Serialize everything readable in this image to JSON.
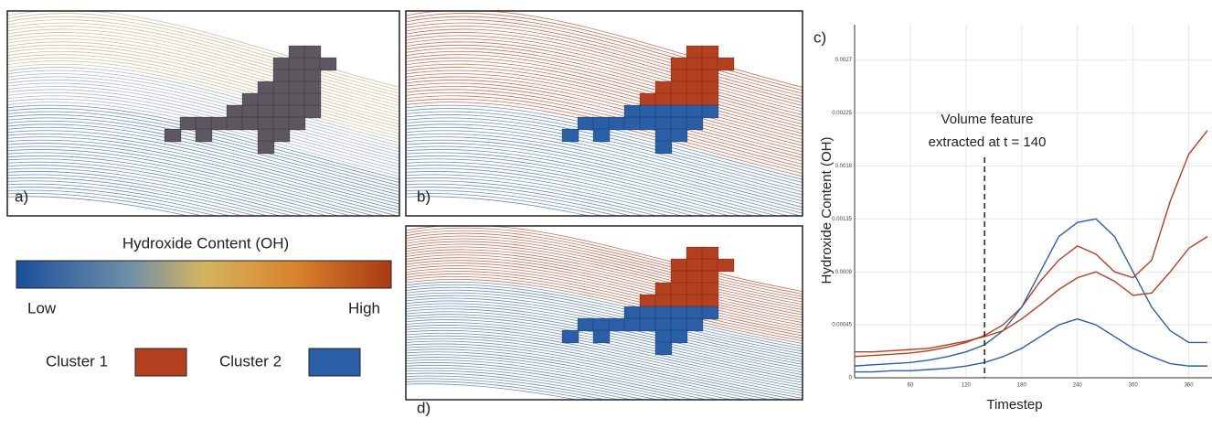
{
  "panels": {
    "a": "a)",
    "b": "b)",
    "d": "d)"
  },
  "colorbar": {
    "title": "Hydroxide Content (OH)",
    "low": "Low",
    "high": "High"
  },
  "chart_data": {
    "type": "line",
    "panel_label": "c)",
    "x_label": "Timestep",
    "y_label": "Hydroxide Content (OH)",
    "x": [
      0,
      20,
      40,
      60,
      80,
      100,
      120,
      140,
      160,
      180,
      200,
      220,
      240,
      260,
      280,
      300,
      320,
      340,
      360,
      380
    ],
    "series": [
      {
        "name": "Cluster 1",
        "color": "#b5401f",
        "values": [
          0.00018,
          0.00019,
          0.0002,
          0.00021,
          0.00023,
          0.00026,
          0.0003,
          0.00036,
          0.00045,
          0.0006,
          0.00082,
          0.001,
          0.00112,
          0.00105,
          0.0009,
          0.00085,
          0.001,
          0.0015,
          0.0019,
          0.0021
        ]
      },
      {
        "name": "Cluster 2",
        "color": "#2a5fa8",
        "values": [
          0.0001,
          0.00011,
          0.00012,
          0.00013,
          0.00015,
          0.00018,
          0.00022,
          0.00028,
          0.0004,
          0.0006,
          0.0009,
          0.0012,
          0.00132,
          0.00135,
          0.0012,
          0.0009,
          0.0006,
          0.0004,
          0.0003,
          0.0003
        ]
      },
      {
        "color": "#b5401f",
        "values": [
          0.00022,
          0.00022,
          0.00023,
          0.00024,
          0.00025,
          0.00028,
          0.00031,
          0.00035,
          0.0004,
          0.0005,
          0.00062,
          0.00075,
          0.00085,
          0.0009,
          0.00082,
          0.0007,
          0.00072,
          0.0009,
          0.0011,
          0.0012
        ]
      },
      {
        "color": "#2a5fa8",
        "values": [
          5e-05,
          5e-05,
          6e-05,
          6e-05,
          7e-05,
          8e-05,
          0.0001,
          0.00013,
          0.00018,
          0.00025,
          0.00035,
          0.00045,
          0.0005,
          0.00045,
          0.00035,
          0.00025,
          0.00018,
          0.00012,
          0.0001,
          0.0001
        ]
      }
    ],
    "xlim": [
      0,
      385
    ],
    "ylim": [
      0,
      0.003
    ],
    "xticks": [
      60,
      120,
      180,
      240,
      300,
      360
    ],
    "yticks": [
      0,
      0.00045,
      0.0009,
      0.00135,
      0.0018,
      0.00225,
      0.0027
    ],
    "grid": true,
    "annotation": {
      "lines": [
        "Volume feature",
        "extracted at t = 140"
      ],
      "x": 140
    }
  }
}
